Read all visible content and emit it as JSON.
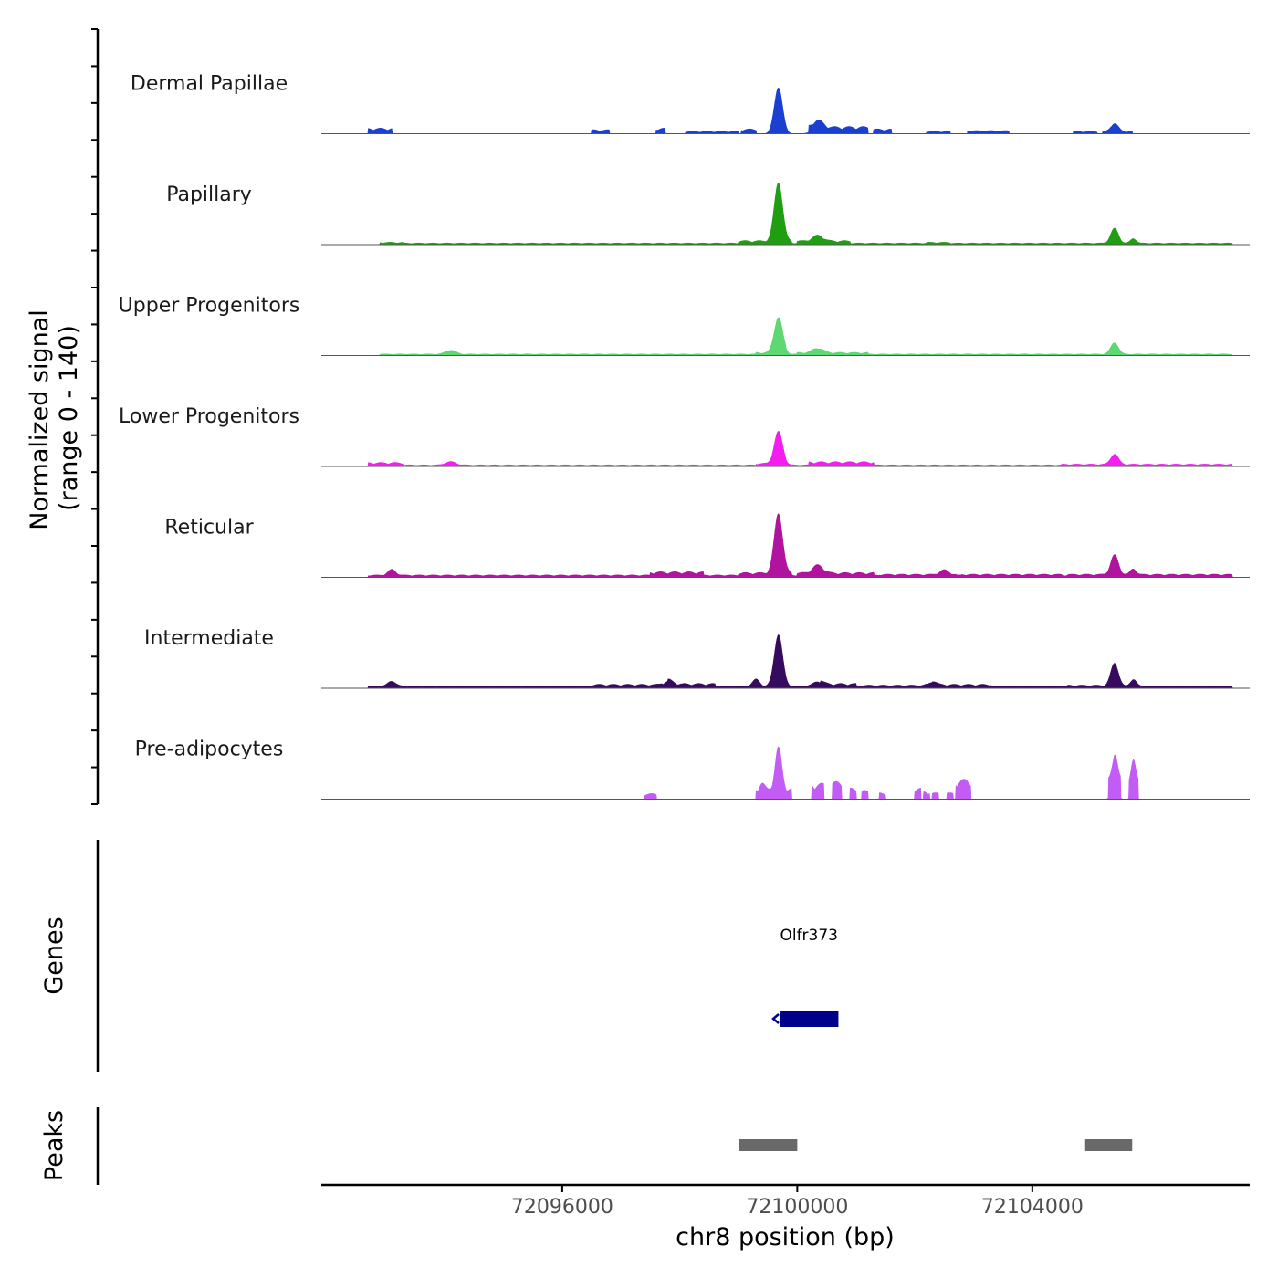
{
  "chart_data": {
    "type": "area",
    "title": "",
    "ylabel_line1": "Normalized signal",
    "ylabel_line2": "(range 0 - 140)",
    "ylim": [
      0,
      140
    ],
    "xlabel": "chr8 position (bp)",
    "xlim": [
      72091900,
      72107700
    ],
    "xticks": [
      72096000,
      72100000,
      72104000
    ],
    "xtick_labels": [
      "72096000",
      "72100000",
      "72104000"
    ],
    "tracks": [
      {
        "name": "Dermal Papillae",
        "color": "#1a3fd1",
        "background": [
          [
            72092700,
            72093100,
            0.07
          ],
          [
            72096500,
            72096800,
            0.05
          ],
          [
            72097600,
            72097750,
            0.07
          ],
          [
            72098100,
            72099000,
            0.03
          ],
          [
            72099050,
            72099300,
            0.06
          ],
          [
            72100200,
            72101200,
            0.09
          ],
          [
            72101300,
            72101600,
            0.06
          ],
          [
            72102200,
            72102600,
            0.03
          ],
          [
            72102900,
            72103600,
            0.04
          ],
          [
            72104700,
            72105100,
            0.03
          ],
          [
            72105200,
            72105700,
            0.03
          ]
        ],
        "peaks": [
          [
            72099680,
            80,
            140
          ],
          [
            72100350,
            12,
            180
          ],
          [
            72105400,
            14,
            130
          ]
        ]
      },
      {
        "name": "Papillary",
        "color": "#1e9e10",
        "background": [
          [
            72092900,
            72107400,
            0.02
          ],
          [
            72092900,
            72093300,
            0.03
          ],
          [
            72099000,
            72099900,
            0.05
          ],
          [
            72100000,
            72100900,
            0.05
          ],
          [
            72102200,
            72102600,
            0.03
          ]
        ],
        "peaks": [
          [
            72099680,
            102,
            140
          ],
          [
            72100350,
            10,
            180
          ],
          [
            72105400,
            26,
            130
          ],
          [
            72105720,
            8,
            100
          ]
        ]
      },
      {
        "name": "Upper Progenitors",
        "color": "#5ed870",
        "background": [
          [
            72092900,
            72107400,
            0.02
          ],
          [
            72099300,
            72099800,
            0.04
          ],
          [
            72100000,
            72101200,
            0.04
          ]
        ],
        "peaks": [
          [
            72099680,
            62,
            140
          ],
          [
            72094100,
            7,
            170
          ],
          [
            72100350,
            8,
            180
          ],
          [
            72105400,
            20,
            130
          ]
        ]
      },
      {
        "name": "Lower Progenitors",
        "color": "#f21ef0",
        "background": [
          [
            72092700,
            72107400,
            0.02
          ],
          [
            72092700,
            72093300,
            0.05
          ],
          [
            72099300,
            72099800,
            0.04
          ],
          [
            72100200,
            72101300,
            0.06
          ],
          [
            72104500,
            72107400,
            0.03
          ]
        ],
        "peaks": [
          [
            72099680,
            56,
            140
          ],
          [
            72094100,
            6,
            170
          ],
          [
            72105400,
            18,
            130
          ]
        ]
      },
      {
        "name": "Reticular",
        "color": "#b0139d",
        "background": [
          [
            72092700,
            72107400,
            0.03
          ],
          [
            72097500,
            72098400,
            0.07
          ],
          [
            72099000,
            72099900,
            0.06
          ],
          [
            72100000,
            72101300,
            0.06
          ],
          [
            72101400,
            72102700,
            0.04
          ],
          [
            72102800,
            72104500,
            0.04
          ],
          [
            72104600,
            72107400,
            0.04
          ]
        ],
        "peaks": [
          [
            72099680,
            104,
            140
          ],
          [
            72093100,
            10,
            130
          ],
          [
            72100350,
            14,
            180
          ],
          [
            72102500,
            8,
            150
          ],
          [
            72105400,
            34,
            130
          ],
          [
            72105720,
            10,
            100
          ]
        ]
      },
      {
        "name": "Intermediate",
        "color": "#360a5c",
        "background": [
          [
            72092700,
            72107400,
            0.03
          ],
          [
            72096500,
            72097700,
            0.05
          ],
          [
            72097800,
            72098600,
            0.06
          ],
          [
            72100400,
            72101000,
            0.06
          ],
          [
            72101100,
            72102200,
            0.04
          ],
          [
            72102300,
            72103300,
            0.05
          ],
          [
            72104600,
            72105200,
            0.04
          ]
        ],
        "peaks": [
          [
            72099680,
            90,
            140
          ],
          [
            72093100,
            9,
            130
          ],
          [
            72097800,
            8,
            150
          ],
          [
            72099300,
            12,
            120
          ],
          [
            72100350,
            8,
            160
          ],
          [
            72102300,
            7,
            130
          ],
          [
            72105400,
            40,
            130
          ],
          [
            72105720,
            12,
            100
          ]
        ]
      },
      {
        "name": "Pre-adipocytes",
        "color": "#c25cf5",
        "background": [
          [
            72097400,
            72097600,
            0.07
          ],
          [
            72099300,
            72099900,
            0.14
          ],
          [
            72100250,
            72100450,
            0.2
          ],
          [
            72100600,
            72100750,
            0.22
          ],
          [
            72100900,
            72101000,
            0.14
          ],
          [
            72101100,
            72101200,
            0.11
          ],
          [
            72101400,
            72101500,
            0.08
          ],
          [
            72102000,
            72102100,
            0.14
          ],
          [
            72102150,
            72102250,
            0.1
          ],
          [
            72102300,
            72102400,
            0.08
          ],
          [
            72102550,
            72102650,
            0.08
          ],
          [
            72102700,
            72102950,
            0.25
          ],
          [
            72105300,
            72105500,
            0.26
          ],
          [
            72105650,
            72105800,
            0.28
          ]
        ],
        "peaks": [
          [
            72099680,
            72,
            110
          ],
          [
            72099400,
            10,
            80
          ],
          [
            72105400,
            50,
            90
          ],
          [
            72105720,
            30,
            70
          ]
        ]
      }
    ],
    "genes": [
      {
        "name": "Olfr373",
        "start": 72099700,
        "end": 72100700,
        "strand": "-",
        "color": "#00008b"
      }
    ],
    "genes_label": "Genes",
    "peaks_label": "Peaks",
    "peak_regions": [
      [
        72099000,
        72100000
      ],
      [
        72104900,
        72105700
      ]
    ],
    "peak_color": "#696969"
  }
}
